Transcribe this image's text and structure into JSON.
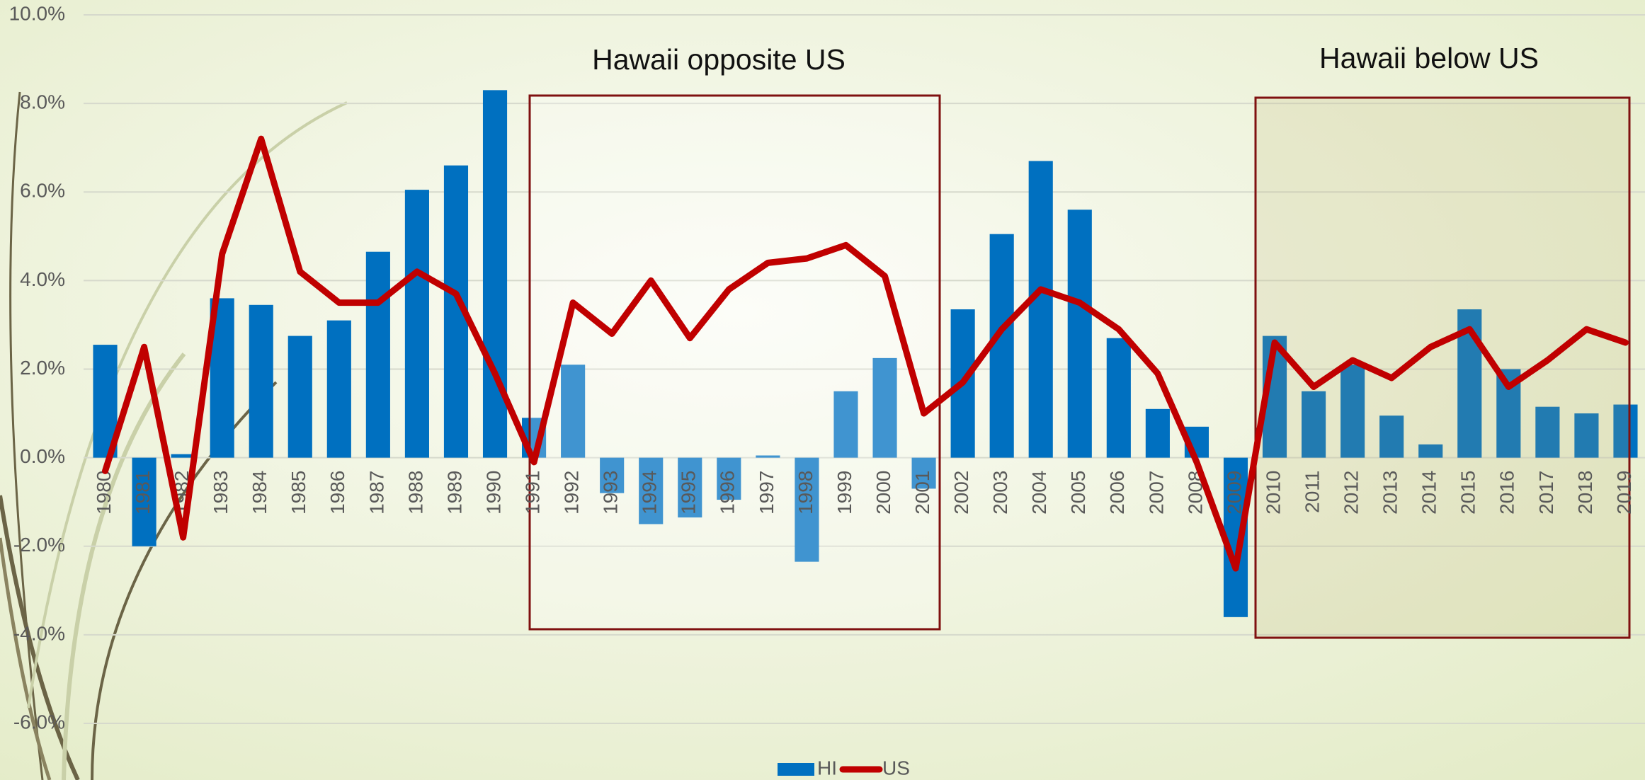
{
  "chart_data": {
    "type": "bar",
    "annotations": [
      "Hawaii opposite US",
      "Hawaii below US"
    ],
    "categories": [
      "1980",
      "1981",
      "1982",
      "1983",
      "1984",
      "1985",
      "1986",
      "1987",
      "1988",
      "1989",
      "1990",
      "1991",
      "1992",
      "1993",
      "1994",
      "1995",
      "1996",
      "1997",
      "1998",
      "1999",
      "2000",
      "2001",
      "2002",
      "2003",
      "2004",
      "2005",
      "2006",
      "2007",
      "2008",
      "2009",
      "2010",
      "2011",
      "2012",
      "2013",
      "2014",
      "2015",
      "2016",
      "2017",
      "2018",
      "2019"
    ],
    "series": [
      {
        "name": "HI",
        "type": "bar",
        "color": "#0070c0",
        "values": [
          2.55,
          -2.0,
          0.08,
          3.6,
          3.45,
          2.75,
          3.1,
          4.65,
          6.05,
          6.6,
          8.3,
          0.9,
          2.1,
          -0.8,
          -1.5,
          -1.35,
          -0.95,
          0.05,
          -2.35,
          1.5,
          2.25,
          -0.7,
          3.35,
          5.05,
          6.7,
          5.6,
          2.7,
          1.1,
          0.7,
          -3.6,
          2.75,
          1.5,
          2.1,
          0.95,
          0.3,
          3.35,
          2.0,
          1.15,
          1.0,
          1.2
        ]
      },
      {
        "name": "US",
        "type": "line",
        "color": "#c00000",
        "values": [
          -0.3,
          2.5,
          -1.8,
          4.6,
          7.2,
          4.2,
          3.5,
          3.5,
          4.2,
          3.7,
          1.9,
          -0.1,
          3.5,
          2.8,
          4.0,
          2.7,
          3.8,
          4.4,
          4.5,
          4.8,
          4.1,
          1.0,
          1.7,
          2.9,
          3.8,
          3.5,
          2.9,
          1.9,
          -0.1,
          -2.5,
          2.6,
          1.6,
          2.2,
          1.8,
          2.5,
          2.9,
          1.6,
          2.2,
          2.9,
          2.6
        ]
      }
    ],
    "ylim": [
      -6,
      10
    ],
    "yticks": [
      {
        "value": -6,
        "label": "-6.0%"
      },
      {
        "value": -4,
        "label": "-4.0%"
      },
      {
        "value": -2,
        "label": "-2.0%"
      },
      {
        "value": 0,
        "label": "0.0%"
      },
      {
        "value": 2,
        "label": "2.0%"
      },
      {
        "value": 4,
        "label": "4.0%"
      },
      {
        "value": 6,
        "label": "6.0%"
      },
      {
        "value": 8,
        "label": "8.0%"
      },
      {
        "value": 10,
        "label": "10.0%"
      }
    ],
    "grid": true,
    "legend": "bottom"
  }
}
